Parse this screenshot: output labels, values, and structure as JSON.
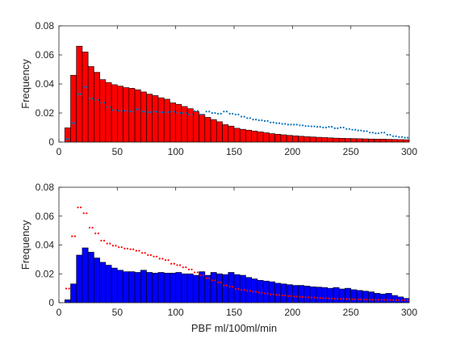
{
  "chart_data": [
    {
      "type": "bar",
      "ylabel": "Frequency",
      "xlabel": "",
      "xlim": [
        0,
        300
      ],
      "ylim": [
        0,
        0.08
      ],
      "xticks": [
        "0",
        "50",
        "100",
        "150",
        "200",
        "250",
        "300"
      ],
      "yticks": [
        "0",
        "0.02",
        "0.04",
        "0.06",
        "0.08"
      ],
      "bin_width": 5,
      "bin_start": 5,
      "bar_color": "#ff0000",
      "overlay_color": "#0072bd",
      "series": [
        {
          "style": "bars",
          "values": [
            0.0098,
            0.046,
            0.066,
            0.062,
            0.052,
            0.048,
            0.043,
            0.041,
            0.0395,
            0.0385,
            0.0375,
            0.037,
            0.036,
            0.0345,
            0.033,
            0.032,
            0.0305,
            0.0295,
            0.027,
            0.026,
            0.0245,
            0.023,
            0.021,
            0.019,
            0.017,
            0.0155,
            0.014,
            0.012,
            0.011,
            0.0095,
            0.0088,
            0.0082,
            0.0076,
            0.007,
            0.0064,
            0.0058,
            0.0054,
            0.005,
            0.0046,
            0.0043,
            0.004,
            0.0037,
            0.0035,
            0.0033,
            0.0031,
            0.0029,
            0.0027,
            0.0026,
            0.0025,
            0.0024,
            0.0023,
            0.0022,
            0.0021,
            0.002,
            0.002,
            0.0019,
            0.0018,
            0.0017,
            0.0016
          ]
        },
        {
          "style": "dots",
          "values": [
            0.002,
            0.013,
            0.033,
            0.038,
            0.03,
            0.029,
            0.027,
            0.024,
            0.022,
            0.0215,
            0.0215,
            0.021,
            0.0225,
            0.021,
            0.0205,
            0.021,
            0.0205,
            0.0205,
            0.021,
            0.02,
            0.02,
            0.019,
            0.0215,
            0.019,
            0.021,
            0.02,
            0.0195,
            0.021,
            0.0195,
            0.019,
            0.0175,
            0.0165,
            0.0155,
            0.015,
            0.0145,
            0.0135,
            0.013,
            0.0125,
            0.012,
            0.012,
            0.0115,
            0.011,
            0.0108,
            0.0105,
            0.01,
            0.0105,
            0.0095,
            0.01,
            0.009,
            0.0085,
            0.008,
            0.0075,
            0.0065,
            0.006,
            0.0065,
            0.005,
            0.004,
            0.0035,
            0.003
          ]
        }
      ]
    },
    {
      "type": "bar",
      "ylabel": "Frequency",
      "xlabel": "PBF ml/100ml/min",
      "xlim": [
        0,
        300
      ],
      "ylim": [
        0,
        0.08
      ],
      "xticks": [
        "0",
        "50",
        "100",
        "150",
        "200",
        "250",
        "300"
      ],
      "yticks": [
        "0",
        "0.02",
        "0.04",
        "0.06",
        "0.08"
      ],
      "bin_width": 5,
      "bin_start": 5,
      "bar_color": "#0000ff",
      "overlay_color": "#ff0000",
      "series": [
        {
          "style": "bars",
          "values": [
            0.002,
            0.013,
            0.033,
            0.038,
            0.035,
            0.031,
            0.028,
            0.026,
            0.024,
            0.0225,
            0.0215,
            0.0215,
            0.021,
            0.0225,
            0.021,
            0.0205,
            0.021,
            0.0205,
            0.0205,
            0.021,
            0.02,
            0.02,
            0.019,
            0.0215,
            0.019,
            0.021,
            0.02,
            0.0195,
            0.021,
            0.0195,
            0.019,
            0.0175,
            0.0165,
            0.0155,
            0.015,
            0.0145,
            0.0135,
            0.013,
            0.0125,
            0.012,
            0.012,
            0.0115,
            0.011,
            0.0108,
            0.0105,
            0.01,
            0.0105,
            0.0095,
            0.01,
            0.009,
            0.0085,
            0.008,
            0.0075,
            0.0065,
            0.006,
            0.0065,
            0.005,
            0.004,
            0.003
          ]
        },
        {
          "style": "dots",
          "values": [
            0.0098,
            0.046,
            0.066,
            0.062,
            0.052,
            0.048,
            0.043,
            0.041,
            0.0395,
            0.0385,
            0.0375,
            0.037,
            0.036,
            0.0345,
            0.033,
            0.032,
            0.0305,
            0.0295,
            0.027,
            0.026,
            0.0245,
            0.023,
            0.021,
            0.019,
            0.017,
            0.0155,
            0.014,
            0.012,
            0.011,
            0.0095,
            0.0088,
            0.0082,
            0.0076,
            0.007,
            0.0064,
            0.0058,
            0.0054,
            0.005,
            0.0046,
            0.0043,
            0.004,
            0.0037,
            0.0035,
            0.0033,
            0.0031,
            0.0029,
            0.0027,
            0.0026,
            0.0025,
            0.0024,
            0.0023,
            0.0022,
            0.0021,
            0.002,
            0.002,
            0.0019,
            0.0018,
            0.0017,
            0.0016
          ]
        }
      ]
    }
  ]
}
